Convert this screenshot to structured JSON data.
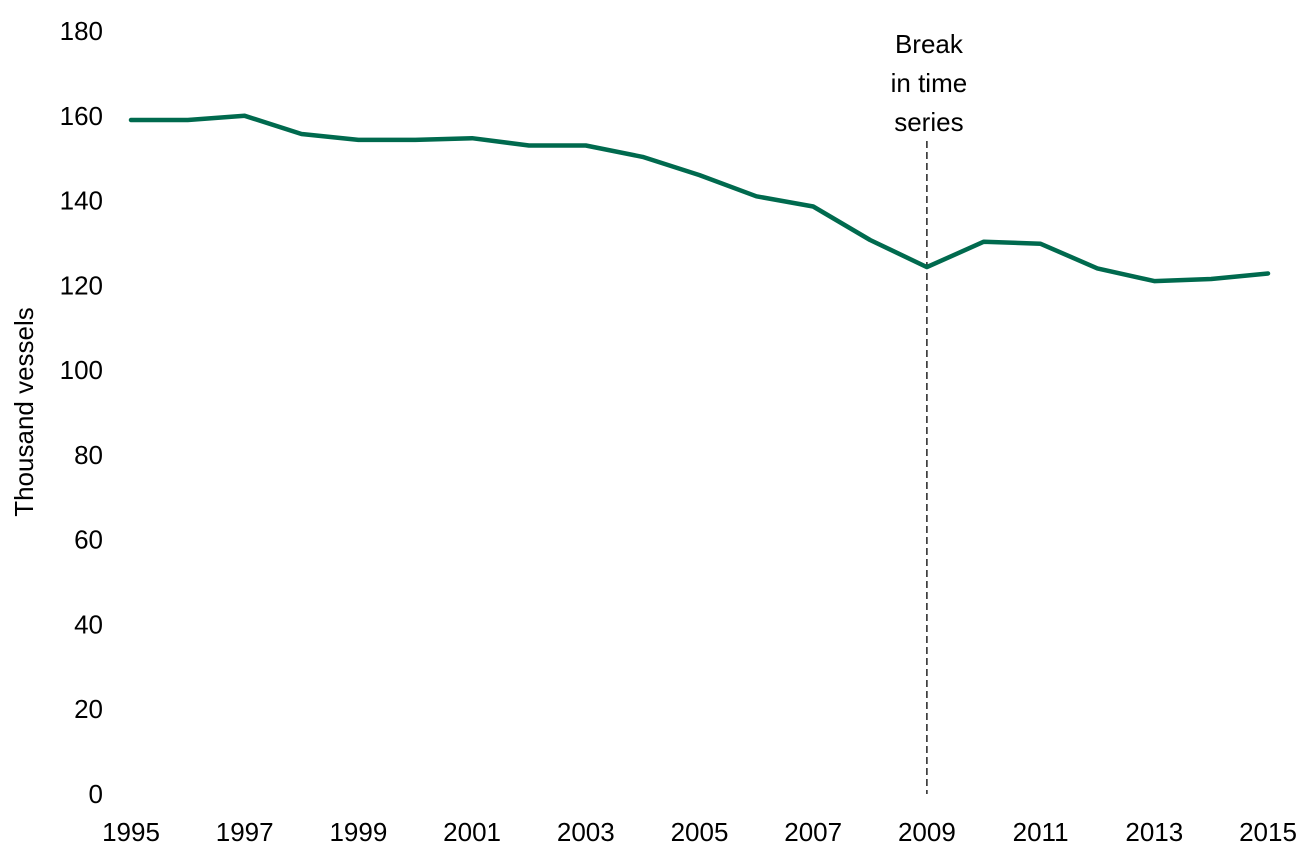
{
  "chart_data": {
    "type": "line",
    "title": "",
    "xlabel": "",
    "ylabel": "Thousand vessels",
    "x": [
      1995,
      1996,
      1997,
      1998,
      1999,
      2000,
      2001,
      2002,
      2003,
      2004,
      2005,
      2006,
      2007,
      2008,
      2009,
      2010,
      2011,
      2012,
      2013,
      2014,
      2015
    ],
    "x_tick_labels": [
      "1995",
      "1997",
      "1999",
      "2001",
      "2003",
      "2005",
      "2007",
      "2009",
      "2011",
      "2013",
      "2015"
    ],
    "y_tick_labels": [
      "0",
      "20",
      "40",
      "60",
      "80",
      "100",
      "120",
      "140",
      "160",
      "180"
    ],
    "ylim": [
      0,
      180
    ],
    "xlim": [
      1995,
      2015
    ],
    "grid": false,
    "series": [
      {
        "color": "#006a4e",
        "values": [
          159.0,
          159.0,
          160.0,
          155.7,
          154.3,
          154.3,
          154.7,
          153.0,
          153.0,
          150.3,
          146.0,
          141.0,
          138.6,
          130.7,
          124.3,
          130.3,
          129.8,
          124.0,
          121.0,
          121.5,
          122.8
        ]
      }
    ],
    "annotations": [
      {
        "x": 2009,
        "style": "dashed-vertical-line",
        "text_lines": [
          "Break",
          "in time",
          "series"
        ]
      }
    ]
  }
}
